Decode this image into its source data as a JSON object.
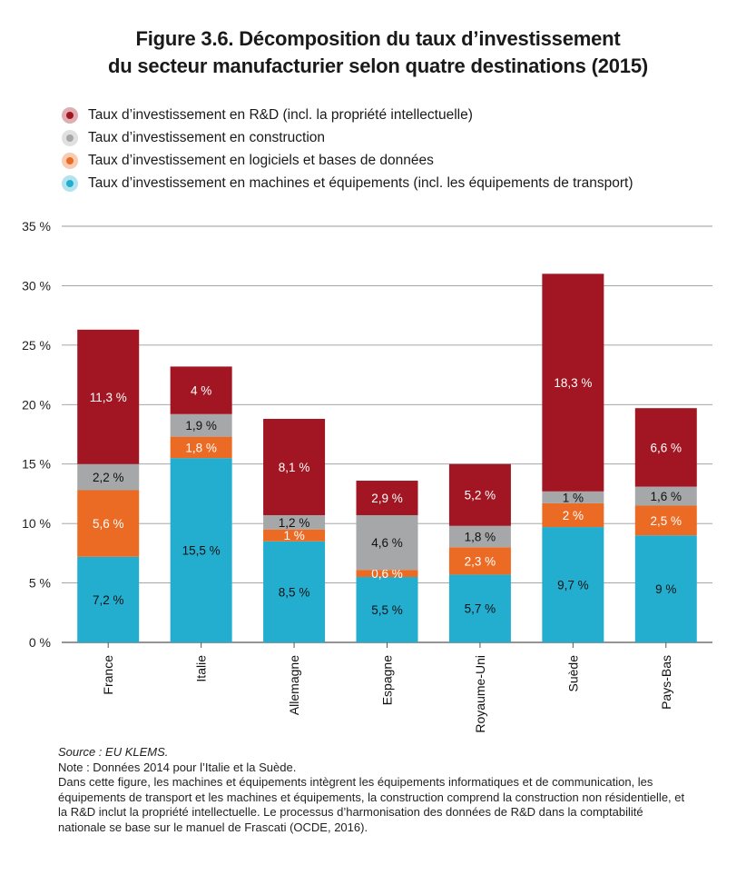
{
  "title_line1": "Figure 3.6. Décomposition du taux d’investissement",
  "title_line2": "du secteur manufacturier selon quatre destinations (2015)",
  "legend": [
    {
      "label": "Taux d’investissement en R&D (incl. la propriété intellectuelle)",
      "color": "#a11622"
    },
    {
      "label": "Taux d’investissement en construction",
      "color": "#a6a7a9"
    },
    {
      "label": "Taux d’investissement en logiciels et bases de données",
      "color": "#ec6b24"
    },
    {
      "label": "Taux d’investissement en machines et équipements (incl. les équipements de transport)",
      "color": "#23aed0"
    }
  ],
  "chart_data": {
    "type": "bar",
    "stacked": true,
    "categories": [
      "France",
      "Italie",
      "Allemagne",
      "Espagne",
      "Royaume-Uni",
      "Suède",
      "Pays-Bas"
    ],
    "series": [
      {
        "name": "Taux d’investissement en machines et équipements (incl. les équipements de transport)",
        "color": "#23aed0",
        "values": [
          7.2,
          15.5,
          8.5,
          5.5,
          5.7,
          9.7,
          9
        ],
        "labels": [
          "7,2 %",
          "15,5 %",
          "8,5 %",
          "5,5 %",
          "5,7 %",
          "9,7 %",
          "9 %"
        ]
      },
      {
        "name": "Taux d’investissement en logiciels et bases de données",
        "color": "#ec6b24",
        "values": [
          5.6,
          1.8,
          1,
          0.6,
          2.3,
          2,
          2.5
        ],
        "labels": [
          "5,6 %",
          "1,8 %",
          "1 %",
          "0,6 %",
          "2,3 %",
          "2 %",
          "2,5 %"
        ]
      },
      {
        "name": "Taux d’investissement en construction",
        "color": "#a6a7a9",
        "values": [
          2.2,
          1.9,
          1.2,
          4.6,
          1.8,
          1,
          1.6
        ],
        "labels": [
          "2,2 %",
          "1,9 %",
          "1,2 %",
          "4,6 %",
          "1,8 %",
          "1 %",
          "1,6 %"
        ]
      },
      {
        "name": "Taux d’investissement en R&D (incl. la propriété intellectuelle)",
        "color": "#a11622",
        "values": [
          11.3,
          4,
          8.1,
          2.9,
          5.2,
          18.3,
          6.6
        ],
        "labels": [
          "11,3 %",
          "4 %",
          "8,1 %",
          "2,9 %",
          "5,2 %",
          "18,3 %",
          "6,6 %"
        ]
      }
    ],
    "ylim": [
      0,
      35
    ],
    "yticks": [
      0,
      5,
      10,
      15,
      20,
      25,
      30,
      35
    ],
    "ytick_labels": [
      "0 %",
      "5 %",
      "10 %",
      "15 %",
      "20 %",
      "25 %",
      "30 %",
      "35 %"
    ],
    "grid": true,
    "legend_position": "top-left"
  },
  "notes": {
    "source": "Source : EU KLEMS.",
    "note": "Note : Données 2014 pour l’Italie et la Suède.",
    "text": "Dans cette figure, les machines et équipements intègrent les équipements informatiques et de communication, les équipements de transport et les machines et équipements, la construction comprend la construction non résidentielle, et la R&D inclut la propriété intellectuelle. Le processus d’harmonisation des données de R&D dans la comptabilité nationale se base sur le manuel de Frascati (OCDE, 2016)."
  }
}
